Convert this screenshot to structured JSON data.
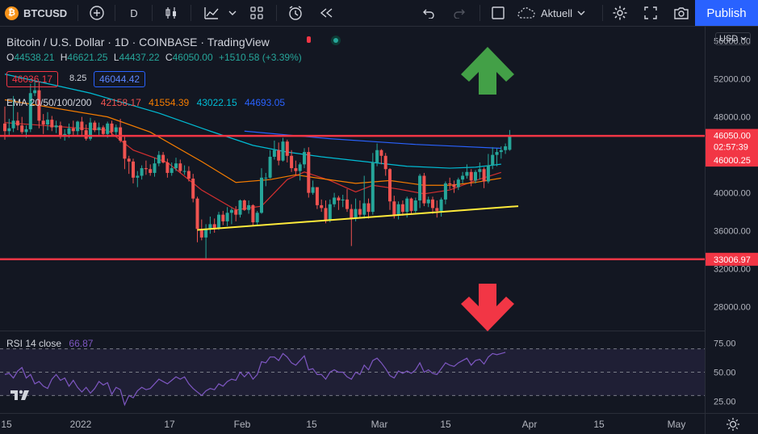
{
  "toolbar": {
    "symbol": "BTCUSD",
    "interval": "D",
    "layout_name": "Aktuell",
    "publish_label": "Publish",
    "currency": "USD"
  },
  "legend": {
    "title": "Bitcoin / U.S. Dollar · 1D · COINBASE · TradingView",
    "ohlc": {
      "o_label": "O",
      "o": "44538.21",
      "h_label": "H",
      "h": "46621.25",
      "l_label": "L",
      "l": "44437.22",
      "c_label": "C",
      "c": "46050.00",
      "change": "+1510.58 (+3.39%)"
    },
    "bid": "46036.17",
    "spread": "8.25",
    "ask": "46044.42",
    "ema_label": "EMA 20/50/100/200",
    "ema_values": [
      "42158.17",
      "41554.39",
      "43022.15",
      "44693.05"
    ],
    "rsi_label": "RSI 14 close",
    "rsi_value": "66.87"
  },
  "price_labels": {
    "last": "46050.00",
    "countdown": "02:57:39",
    "upper_line": "46000.25",
    "lower_line": "33006.97"
  },
  "colors": {
    "background": "#131722",
    "up": "#26a69a",
    "down": "#ef5350",
    "ema20": "#d32f2f",
    "ema50": "#f57c00",
    "ema100": "#00bcd4",
    "ema200": "#2962ff",
    "horizontal_lines": "#f23645",
    "trendline": "#ffeb3b",
    "rsi": "#7e57c2",
    "arrow_up": "#43a047",
    "arrow_down": "#f23645"
  },
  "chart_data": {
    "type": "candlestick",
    "symbol": "BTCUSD",
    "timeframe": "1D",
    "exchange": "COINBASE",
    "x_ticks": [
      "15",
      "2022",
      "17",
      "Feb",
      "15",
      "Mar",
      "15",
      "Apr",
      "15",
      "May"
    ],
    "y_ticks": [
      56000,
      52000,
      48000,
      44000,
      40000,
      36000,
      32000,
      28000
    ],
    "ylim": [
      25500,
      57500
    ],
    "candles": [
      [
        47300,
        49100,
        45600,
        46500
      ],
      [
        46500,
        47800,
        46000,
        46800
      ],
      [
        46800,
        50200,
        46400,
        47600
      ],
      [
        47600,
        48500,
        46600,
        47100
      ],
      [
        47100,
        48000,
        46200,
        46400
      ],
      [
        46400,
        47100,
        45800,
        46700
      ],
      [
        46700,
        51500,
        46400,
        50500
      ],
      [
        50500,
        51900,
        50200,
        50800
      ],
      [
        50800,
        51700,
        46800,
        47600
      ],
      [
        47600,
        48300,
        46200,
        47200
      ],
      [
        47200,
        48500,
        46600,
        47700
      ],
      [
        47700,
        48100,
        46500,
        46900
      ],
      [
        46900,
        47600,
        46300,
        47100
      ],
      [
        47100,
        47500,
        45700,
        46000
      ],
      [
        46000,
        46700,
        45500,
        46200
      ],
      [
        46200,
        47300,
        45800,
        46800
      ],
      [
        46800,
        47600,
        46100,
        46500
      ],
      [
        46500,
        47600,
        46100,
        47500
      ],
      [
        47500,
        48000,
        46100,
        46600
      ],
      [
        46600,
        47200,
        45500,
        45700
      ],
      [
        45700,
        47900,
        45500,
        47400
      ],
      [
        47400,
        47600,
        46400,
        46600
      ],
      [
        46600,
        47400,
        46000,
        46900
      ],
      [
        46900,
        47100,
        45900,
        46200
      ],
      [
        46200,
        47500,
        45800,
        47300
      ],
      [
        47300,
        47600,
        46000,
        46400
      ],
      [
        46400,
        47200,
        46100,
        46900
      ],
      [
        46900,
        47800,
        45300,
        45500
      ],
      [
        45500,
        46000,
        42500,
        43600
      ],
      [
        43600,
        43900,
        42000,
        43300
      ],
      [
        43300,
        43600,
        41000,
        41600
      ],
      [
        41600,
        42300,
        40600,
        41800
      ],
      [
        41800,
        42900,
        41400,
        42600
      ],
      [
        42600,
        43400,
        41900,
        42500
      ],
      [
        42500,
        43000,
        41800,
        42100
      ],
      [
        42100,
        43700,
        41700,
        43100
      ],
      [
        43100,
        44400,
        42800,
        44000
      ],
      [
        44000,
        44300,
        43100,
        43200
      ],
      [
        43200,
        43600,
        41600,
        42100
      ],
      [
        42100,
        43200,
        41800,
        42600
      ],
      [
        42600,
        43700,
        42300,
        43100
      ],
      [
        43100,
        43500,
        42100,
        42300
      ],
      [
        42300,
        42900,
        41900,
        42300
      ],
      [
        42300,
        42800,
        41200,
        41500
      ],
      [
        41500,
        42000,
        39000,
        39400
      ],
      [
        39400,
        39600,
        34800,
        36200
      ],
      [
        36200,
        37200,
        35000,
        35300
      ],
      [
        35300,
        36700,
        33000,
        36200
      ],
      [
        36200,
        37500,
        35700,
        36700
      ],
      [
        36700,
        37300,
        35800,
        36300
      ],
      [
        36300,
        38000,
        36100,
        37700
      ],
      [
        37700,
        38100,
        36600,
        37000
      ],
      [
        37000,
        38500,
        36500,
        37900
      ],
      [
        37900,
        38400,
        36700,
        38200
      ],
      [
        38200,
        38600,
        37000,
        37700
      ],
      [
        37700,
        39300,
        37400,
        39200
      ],
      [
        39200,
        39300,
        38100,
        38200
      ],
      [
        38200,
        39200,
        37800,
        38700
      ],
      [
        38700,
        38800,
        36600,
        36900
      ],
      [
        36900,
        38100,
        36600,
        37900
      ],
      [
        37900,
        42600,
        37800,
        41600
      ],
      [
        41600,
        42100,
        40700,
        41600
      ],
      [
        41600,
        44500,
        41500,
        43800
      ],
      [
        43800,
        45500,
        43500,
        44500
      ],
      [
        44500,
        45300,
        42900,
        43400
      ],
      [
        43400,
        45800,
        43300,
        45400
      ],
      [
        45400,
        45600,
        43200,
        43900
      ],
      [
        43900,
        44500,
        42200,
        42600
      ],
      [
        42600,
        43400,
        41900,
        42300
      ],
      [
        42300,
        43200,
        41300,
        43000
      ],
      [
        43000,
        44700,
        42600,
        44300
      ],
      [
        44300,
        44800,
        39500,
        40000
      ],
      [
        40000,
        41300,
        39800,
        40600
      ],
      [
        40600,
        40600,
        38300,
        38700
      ],
      [
        38700,
        39300,
        38000,
        38400
      ],
      [
        38400,
        39200,
        36800,
        37100
      ],
      [
        37100,
        39300,
        36900,
        38800
      ],
      [
        38800,
        40000,
        38500,
        39500
      ],
      [
        39500,
        39700,
        38200,
        39200
      ],
      [
        39200,
        39800,
        38500,
        39300
      ],
      [
        39300,
        40400,
        38000,
        38300
      ],
      [
        38300,
        38800,
        34400,
        37300
      ],
      [
        37300,
        39400,
        37000,
        38300
      ],
      [
        38300,
        39200,
        37300,
        37700
      ],
      [
        37700,
        41800,
        37300,
        38900
      ],
      [
        38900,
        39400,
        37300,
        38000
      ],
      [
        38000,
        44200,
        37700,
        43200
      ],
      [
        43200,
        45200,
        42800,
        44500
      ],
      [
        44500,
        44600,
        43000,
        43900
      ],
      [
        43900,
        44200,
        41800,
        42500
      ],
      [
        42500,
        42600,
        38200,
        39100
      ],
      [
        39100,
        39700,
        37300,
        37700
      ],
      [
        37700,
        39100,
        37200,
        38800
      ],
      [
        38800,
        39200,
        37600,
        38000
      ],
      [
        38000,
        39600,
        37400,
        39400
      ],
      [
        39400,
        39500,
        37800,
        38100
      ],
      [
        38100,
        39500,
        37900,
        39200
      ],
      [
        39200,
        42000,
        38400,
        41800
      ],
      [
        41800,
        42100,
        38600,
        38900
      ],
      [
        38900,
        39600,
        38500,
        39300
      ],
      [
        39300,
        39600,
        37800,
        38400
      ],
      [
        38400,
        39200,
        37400,
        38100
      ],
      [
        38100,
        39500,
        37500,
        39300
      ],
      [
        39300,
        41200,
        38800,
        41000
      ],
      [
        41000,
        41600,
        40400,
        40900
      ],
      [
        40900,
        41300,
        40000,
        40600
      ],
      [
        40600,
        41600,
        40300,
        41400
      ],
      [
        41400,
        42200,
        41000,
        41800
      ],
      [
        41800,
        43000,
        41500,
        42200
      ],
      [
        42200,
        42500,
        40700,
        41300
      ],
      [
        41300,
        42400,
        41000,
        42200
      ],
      [
        42200,
        43200,
        41400,
        42500
      ],
      [
        42500,
        42700,
        40500,
        41200
      ],
      [
        41200,
        44100,
        41000,
        42900
      ],
      [
        42900,
        44800,
        42500,
        44000
      ],
      [
        44000,
        44700,
        42800,
        44300
      ],
      [
        44300,
        44900,
        43600,
        44500
      ],
      [
        44500,
        45200,
        44100,
        44900
      ],
      [
        44538.21,
        46621.25,
        44437.22,
        46050
      ]
    ],
    "ema": [
      {
        "name": "EMA 20",
        "values": [
          [
            0,
            47400
          ],
          [
            24,
            46600
          ],
          [
            30,
            44500
          ],
          [
            38,
            43200
          ],
          [
            46,
            40300
          ],
          [
            54,
            38200
          ],
          [
            60,
            38600
          ],
          [
            66,
            41400
          ],
          [
            70,
            42200
          ],
          [
            76,
            41300
          ],
          [
            82,
            40100
          ],
          [
            86,
            40800
          ],
          [
            92,
            40400
          ],
          [
            98,
            39900
          ],
          [
            104,
            40300
          ],
          [
            110,
            41300
          ],
          [
            116,
            42158
          ]
        ]
      },
      {
        "name": "EMA 50",
        "values": [
          [
            0,
            49800
          ],
          [
            24,
            48000
          ],
          [
            34,
            46400
          ],
          [
            46,
            43300
          ],
          [
            54,
            41100
          ],
          [
            62,
            41400
          ],
          [
            68,
            41900
          ],
          [
            74,
            41500
          ],
          [
            82,
            41000
          ],
          [
            90,
            41300
          ],
          [
            98,
            40800
          ],
          [
            104,
            40800
          ],
          [
            110,
            41100
          ],
          [
            116,
            41554
          ]
        ]
      },
      {
        "name": "EMA 100",
        "values": [
          [
            0,
            52500
          ],
          [
            20,
            50500
          ],
          [
            36,
            48400
          ],
          [
            48,
            46500
          ],
          [
            58,
            45000
          ],
          [
            66,
            44300
          ],
          [
            74,
            43800
          ],
          [
            84,
            43300
          ],
          [
            94,
            42800
          ],
          [
            104,
            42600
          ],
          [
            110,
            42700
          ],
          [
            116,
            43022
          ]
        ]
      },
      {
        "name": "EMA 200",
        "values": [
          [
            56,
            46500
          ],
          [
            66,
            46100
          ],
          [
            76,
            45700
          ],
          [
            86,
            45400
          ],
          [
            96,
            45100
          ],
          [
            106,
            44900
          ],
          [
            116,
            44693
          ]
        ]
      }
    ],
    "horizontal_lines": [
      46000.25,
      33006.97
    ],
    "trendline": [
      [
        45,
        36100
      ],
      [
        80,
        38000
      ],
      [
        120,
        38600
      ]
    ],
    "rsi": {
      "ylim": [
        15,
        85
      ],
      "levels": [
        70,
        50,
        30
      ],
      "ticks": [
        75,
        50,
        25
      ],
      "values": [
        48,
        49,
        45,
        51,
        54,
        45,
        48,
        40,
        42,
        38,
        36,
        44,
        48,
        43,
        45,
        38,
        43,
        37,
        33,
        37,
        32,
        36,
        42,
        39,
        41,
        31,
        37,
        35,
        22,
        30,
        28,
        34,
        37,
        35,
        36,
        40,
        44,
        42,
        40,
        43,
        46,
        44,
        46,
        40,
        36,
        33,
        30,
        34,
        36,
        35,
        40,
        38,
        42,
        44,
        43,
        50,
        46,
        50,
        44,
        48,
        59,
        58,
        63,
        63,
        60,
        66,
        63,
        58,
        56,
        60,
        64,
        52,
        53,
        48,
        48,
        44,
        50,
        52,
        50,
        50,
        46,
        44,
        50,
        48,
        56,
        52,
        60,
        62,
        58,
        53,
        47,
        45,
        51,
        49,
        51,
        49,
        52,
        58,
        50,
        52,
        49,
        48,
        53,
        58,
        56,
        55,
        58,
        60,
        62,
        56,
        60,
        61,
        57,
        63,
        66,
        65,
        66,
        67
      ]
    }
  }
}
